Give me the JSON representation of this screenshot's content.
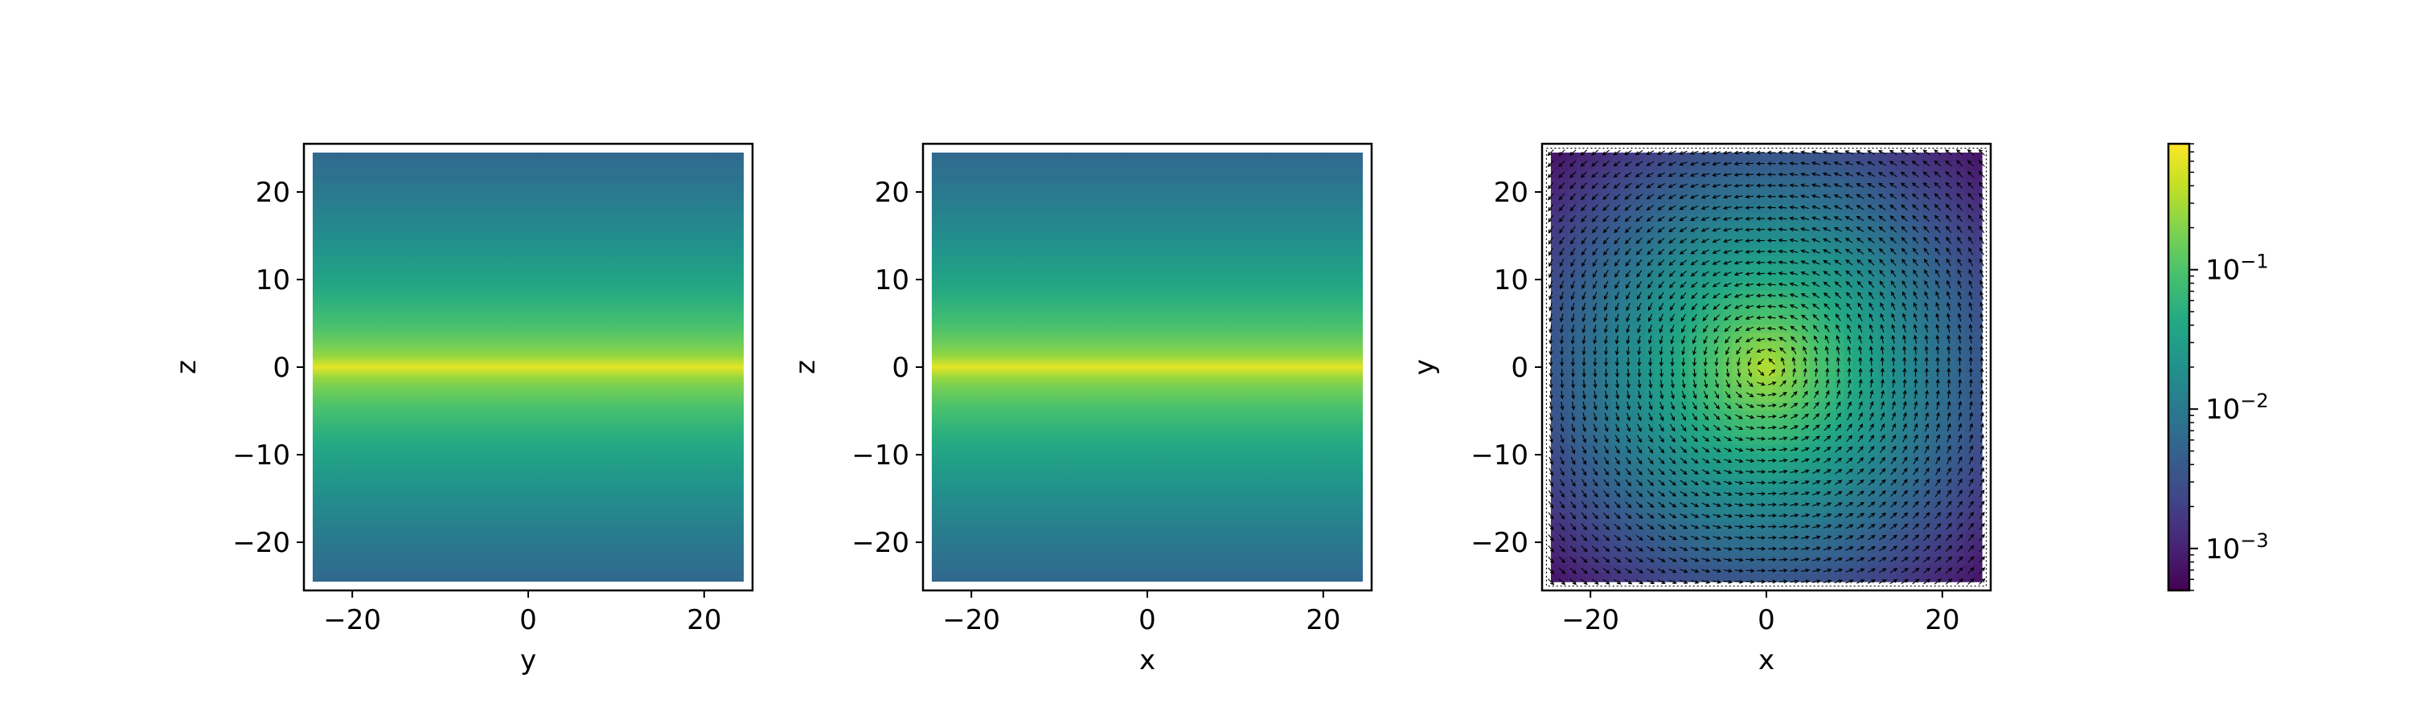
{
  "chart_data": [
    {
      "type": "heatmap",
      "xlabel": "y",
      "ylabel": "z",
      "xlim": [
        -25.5,
        25.5
      ],
      "ylim": [
        -25.5,
        25.5
      ],
      "xticks": [
        -20,
        0,
        20
      ],
      "xtick_labels": [
        "−20",
        "0",
        "20"
      ],
      "yticks": [
        -20,
        -10,
        0,
        10,
        20
      ],
      "ytick_labels": [
        "−20",
        "−10",
        "0",
        "10",
        "20"
      ],
      "field_extent": [
        -24.5,
        24.5
      ],
      "profile": "depends on z only; peak at z = 0",
      "value_at_center": 0.6,
      "value_at_edge": 0.006
    },
    {
      "type": "heatmap",
      "xlabel": "x",
      "ylabel": "z",
      "xlim": [
        -25.5,
        25.5
      ],
      "ylim": [
        -25.5,
        25.5
      ],
      "xticks": [
        -20,
        0,
        20
      ],
      "xtick_labels": [
        "−20",
        "0",
        "20"
      ],
      "yticks": [
        -20,
        -10,
        0,
        10,
        20
      ],
      "ytick_labels": [
        "−20",
        "−10",
        "0",
        "10",
        "20"
      ],
      "field_extent": [
        -24.5,
        24.5
      ],
      "profile": "depends on z only; peak at z = 0",
      "value_at_center": 0.6,
      "value_at_edge": 0.006
    },
    {
      "type": "heatmap",
      "overlay": "quiver",
      "quiver_pattern": "counter-clockwise vortex centered at (0, 0)",
      "xlabel": "x",
      "ylabel": "y",
      "xlim": [
        -25.5,
        25.5
      ],
      "ylim": [
        -25.5,
        25.5
      ],
      "xticks": [
        -20,
        0,
        20
      ],
      "xtick_labels": [
        "−20",
        "0",
        "20"
      ],
      "yticks": [
        -20,
        -10,
        0,
        10,
        20
      ],
      "ytick_labels": [
        "−20",
        "−10",
        "0",
        "10",
        "20"
      ],
      "field_extent": [
        -24.5,
        24.5
      ],
      "value_at_center": 0.4,
      "value_at_corner": 0.0007
    },
    {
      "type": "colorbar",
      "scale": "log",
      "colormap": "viridis",
      "range": [
        0.0005,
        0.8
      ],
      "ticks": [
        0.001,
        0.01,
        0.1
      ],
      "tick_labels": [
        {
          "base": "10",
          "exp": "−3"
        },
        {
          "base": "10",
          "exp": "−2"
        },
        {
          "base": "10",
          "exp": "−1"
        }
      ]
    }
  ]
}
